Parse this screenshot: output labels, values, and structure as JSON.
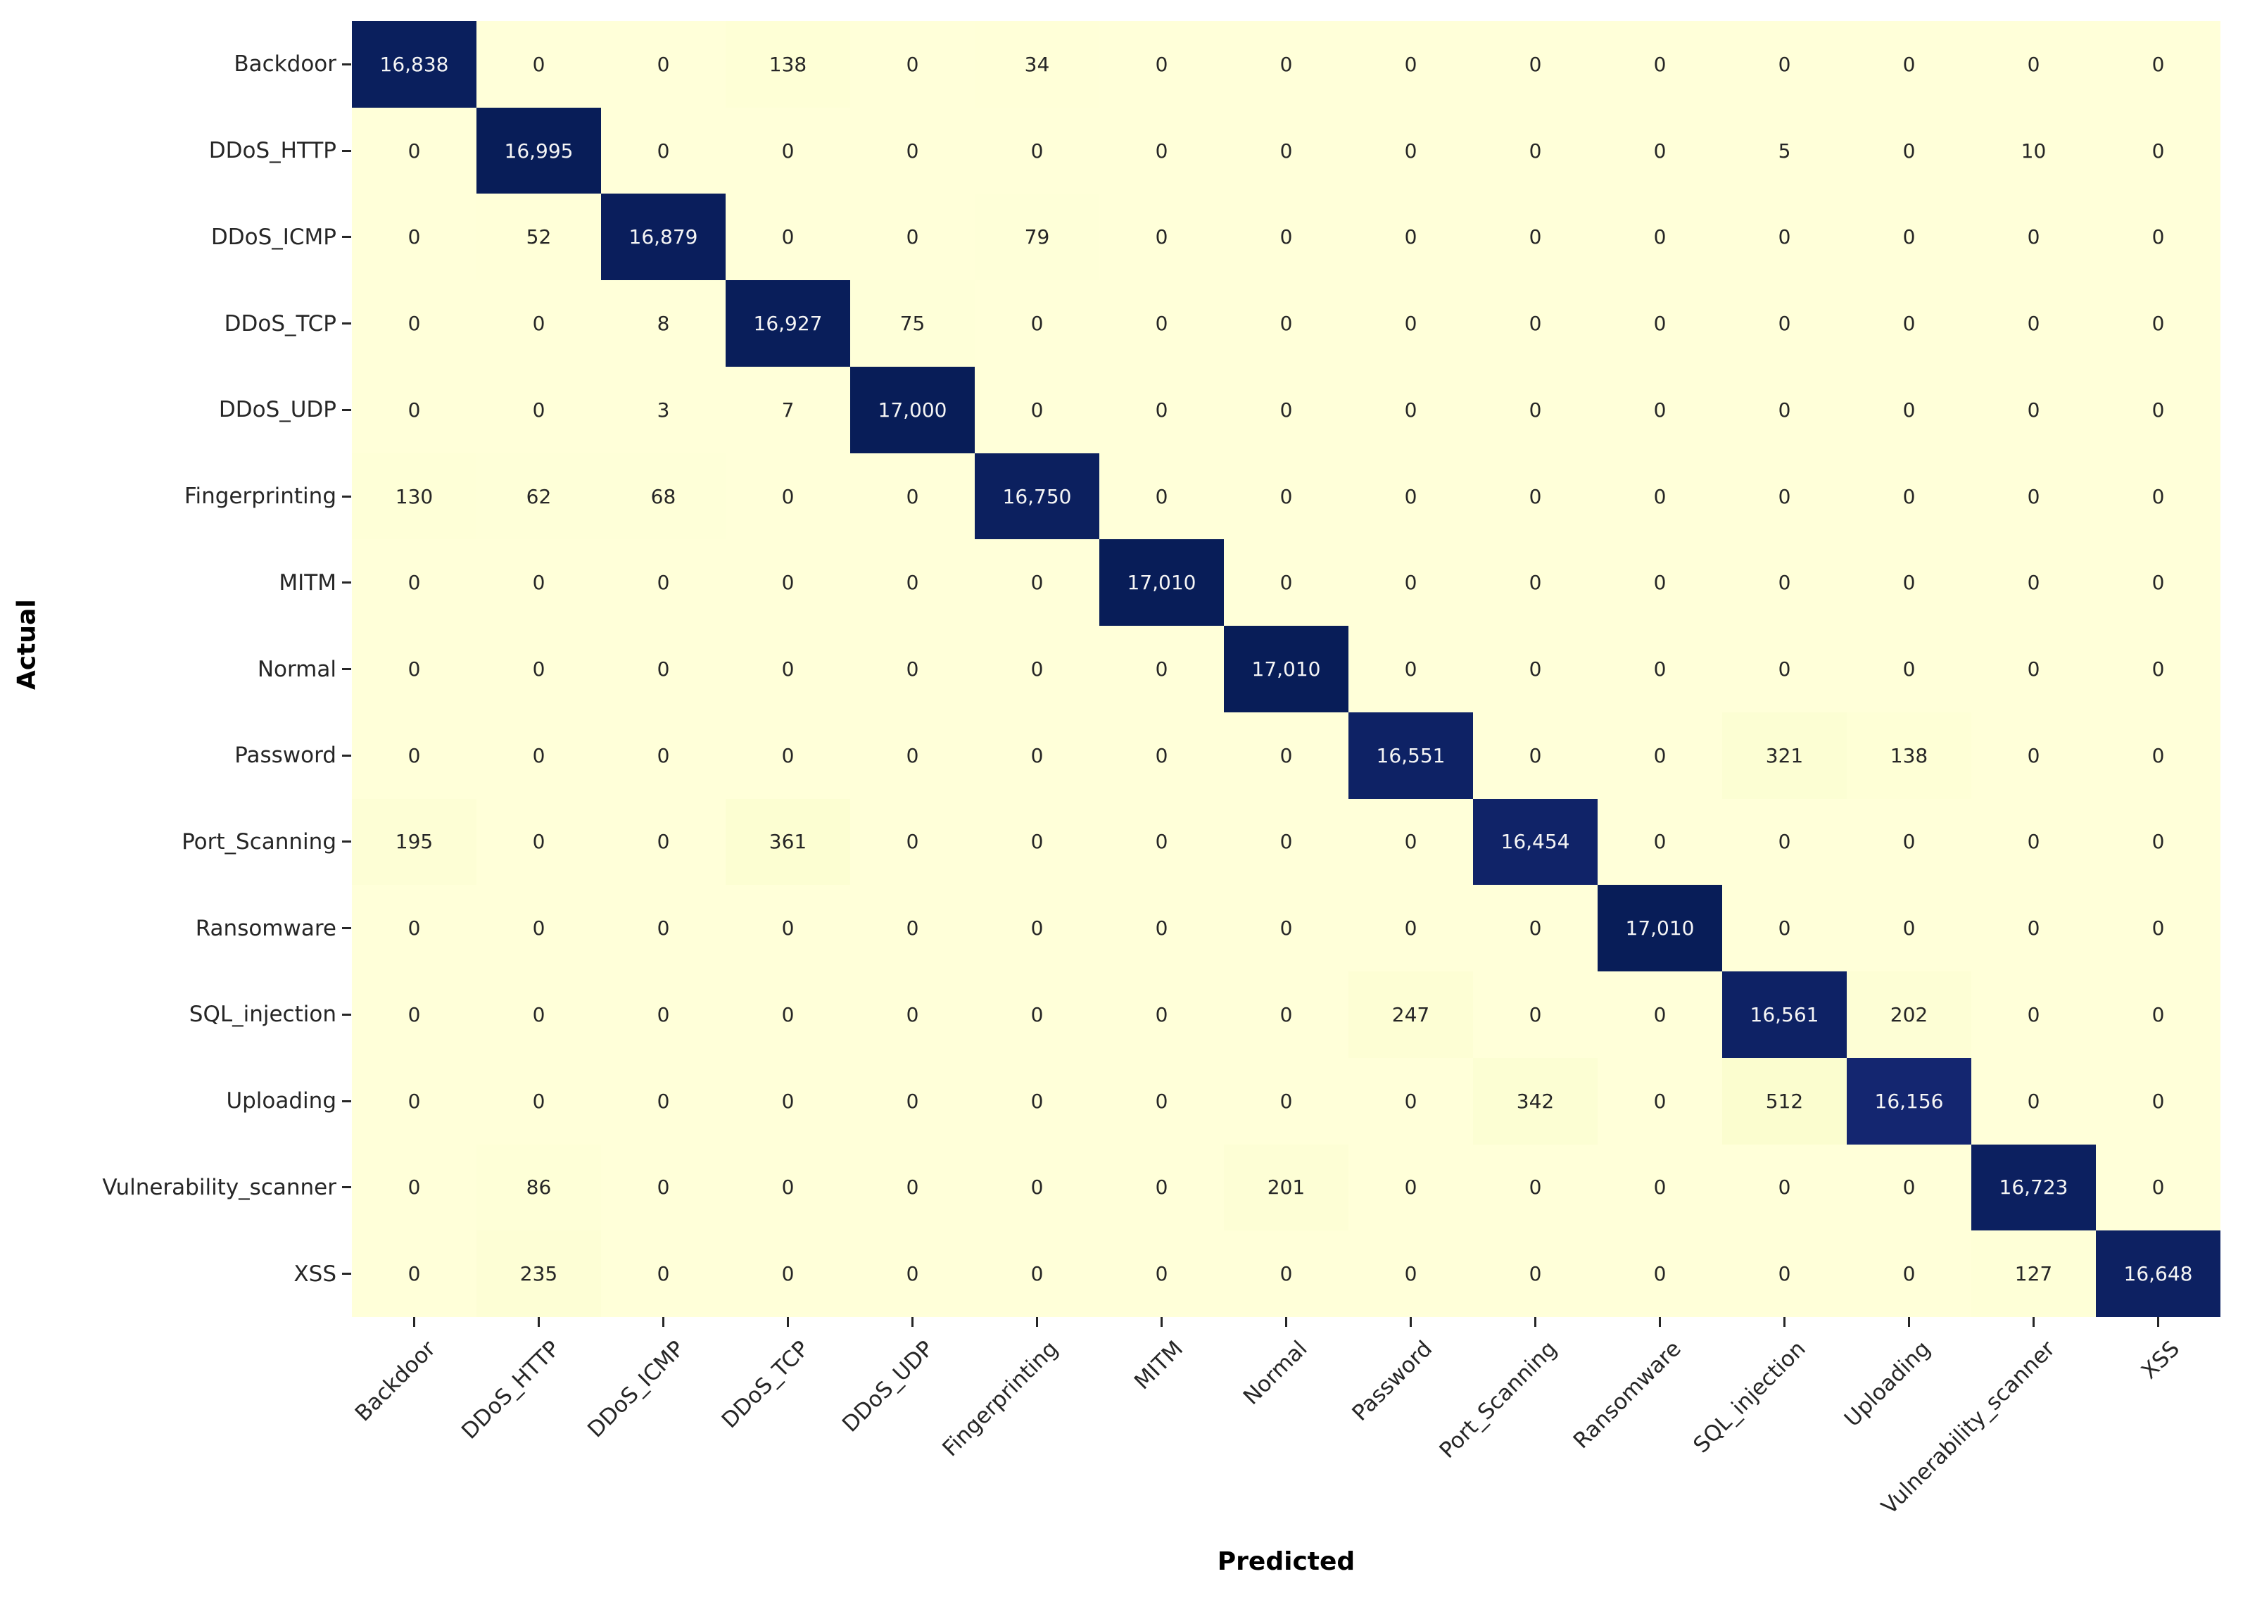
{
  "chart_data": {
    "type": "heatmap",
    "title": "",
    "xlabel": "Predicted",
    "ylabel": "Actual",
    "categories": [
      "Backdoor",
      "DDoS_HTTP",
      "DDoS_ICMP",
      "DDoS_TCP",
      "DDoS_UDP",
      "Fingerprinting",
      "MITM",
      "Normal",
      "Password",
      "Port_Scanning",
      "Ransomware",
      "SQL_injection",
      "Uploading",
      "Vulnerability_scanner",
      "XSS"
    ],
    "matrix": [
      [
        16838,
        0,
        0,
        138,
        0,
        34,
        0,
        0,
        0,
        0,
        0,
        0,
        0,
        0,
        0
      ],
      [
        0,
        16995,
        0,
        0,
        0,
        0,
        0,
        0,
        0,
        0,
        0,
        5,
        0,
        10,
        0
      ],
      [
        0,
        52,
        16879,
        0,
        0,
        79,
        0,
        0,
        0,
        0,
        0,
        0,
        0,
        0,
        0
      ],
      [
        0,
        0,
        8,
        16927,
        75,
        0,
        0,
        0,
        0,
        0,
        0,
        0,
        0,
        0,
        0
      ],
      [
        0,
        0,
        3,
        7,
        17000,
        0,
        0,
        0,
        0,
        0,
        0,
        0,
        0,
        0,
        0
      ],
      [
        130,
        62,
        68,
        0,
        0,
        16750,
        0,
        0,
        0,
        0,
        0,
        0,
        0,
        0,
        0
      ],
      [
        0,
        0,
        0,
        0,
        0,
        0,
        17010,
        0,
        0,
        0,
        0,
        0,
        0,
        0,
        0
      ],
      [
        0,
        0,
        0,
        0,
        0,
        0,
        0,
        17010,
        0,
        0,
        0,
        0,
        0,
        0,
        0
      ],
      [
        0,
        0,
        0,
        0,
        0,
        0,
        0,
        0,
        16551,
        0,
        0,
        321,
        138,
        0,
        0
      ],
      [
        195,
        0,
        0,
        361,
        0,
        0,
        0,
        0,
        0,
        16454,
        0,
        0,
        0,
        0,
        0
      ],
      [
        0,
        0,
        0,
        0,
        0,
        0,
        0,
        0,
        0,
        0,
        17010,
        0,
        0,
        0,
        0
      ],
      [
        0,
        0,
        0,
        0,
        0,
        0,
        0,
        0,
        247,
        0,
        0,
        16561,
        202,
        0,
        0
      ],
      [
        0,
        0,
        0,
        0,
        0,
        0,
        0,
        0,
        0,
        342,
        0,
        512,
        16156,
        0,
        0
      ],
      [
        0,
        86,
        0,
        0,
        0,
        0,
        0,
        201,
        0,
        0,
        0,
        0,
        0,
        16723,
        0
      ],
      [
        0,
        235,
        0,
        0,
        0,
        0,
        0,
        0,
        0,
        0,
        0,
        0,
        0,
        127,
        16648
      ]
    ],
    "value_format": "thousands-comma",
    "vmin": 0,
    "vmax": 17010,
    "colormap": {
      "name": "YlGnBu",
      "stops": [
        "#ffffd9",
        "#edf8b1",
        "#c7e9b4",
        "#7fcdbb",
        "#41b6c4",
        "#1d91c0",
        "#225ea8",
        "#253494",
        "#081d58"
      ]
    },
    "annotation_colors": {
      "on_dark": "#f5f5f5",
      "on_light": "#262626"
    },
    "legend": "none",
    "grid": false
  }
}
